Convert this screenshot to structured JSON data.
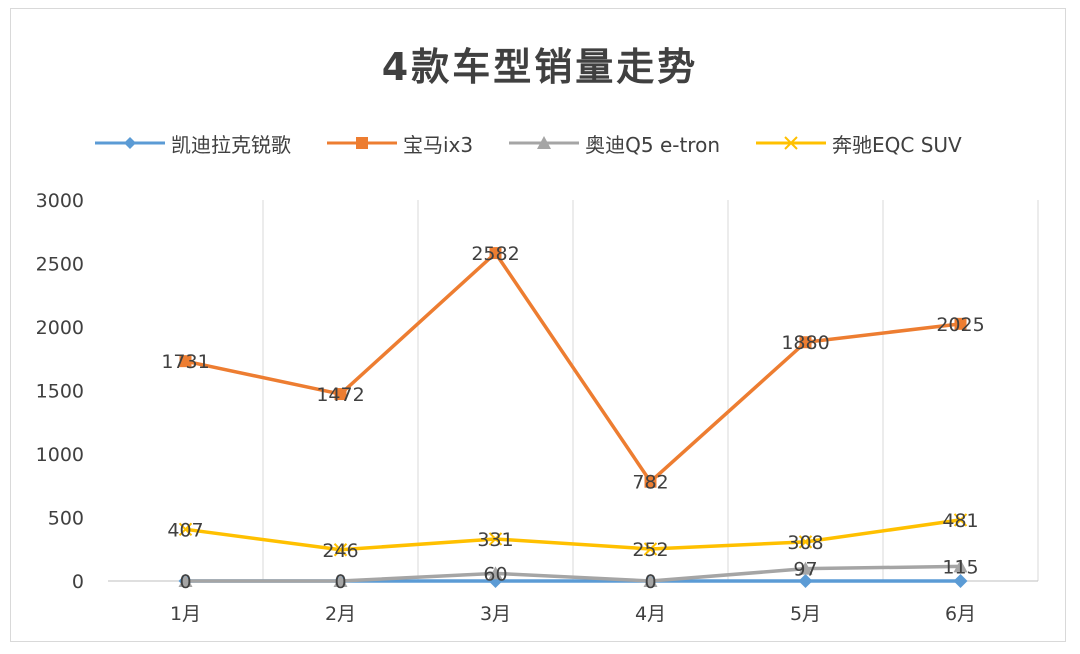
{
  "chart_data": {
    "type": "line",
    "title": "4款车型销量走势",
    "categories": [
      "1月",
      "2月",
      "3月",
      "4月",
      "5月",
      "6月"
    ],
    "ylim": [
      0,
      3000
    ],
    "yticks": [
      0,
      500,
      1000,
      1500,
      2000,
      2500,
      3000
    ],
    "grid": "vertical",
    "legend_position": "top",
    "series": [
      {
        "name": "凯迪拉克锐歌",
        "values": [
          0,
          0,
          0,
          0,
          0,
          0
        ],
        "color": "#5b9bd5",
        "marker": "diamond",
        "labels": [
          "",
          "",
          "",
          "",
          "",
          ""
        ]
      },
      {
        "name": "宝马ix3",
        "values": [
          1731,
          1472,
          2582,
          782,
          1880,
          2025
        ],
        "color": "#ed7d31",
        "marker": "square",
        "labels": [
          "1731",
          "1472",
          "2582",
          "782",
          "1880",
          "2025"
        ]
      },
      {
        "name": "奥迪Q5 e-tron",
        "values": [
          0,
          0,
          60,
          0,
          97,
          115
        ],
        "color": "#a5a5a5",
        "marker": "triangle",
        "labels": [
          "0",
          "0",
          "60",
          "0",
          "97",
          "115"
        ]
      },
      {
        "name": "奔驰EQC SUV",
        "values": [
          407,
          246,
          331,
          252,
          308,
          481
        ],
        "color": "#ffc000",
        "marker": "x",
        "labels": [
          "407",
          "246",
          "331",
          "252",
          "308",
          "481"
        ]
      }
    ]
  }
}
